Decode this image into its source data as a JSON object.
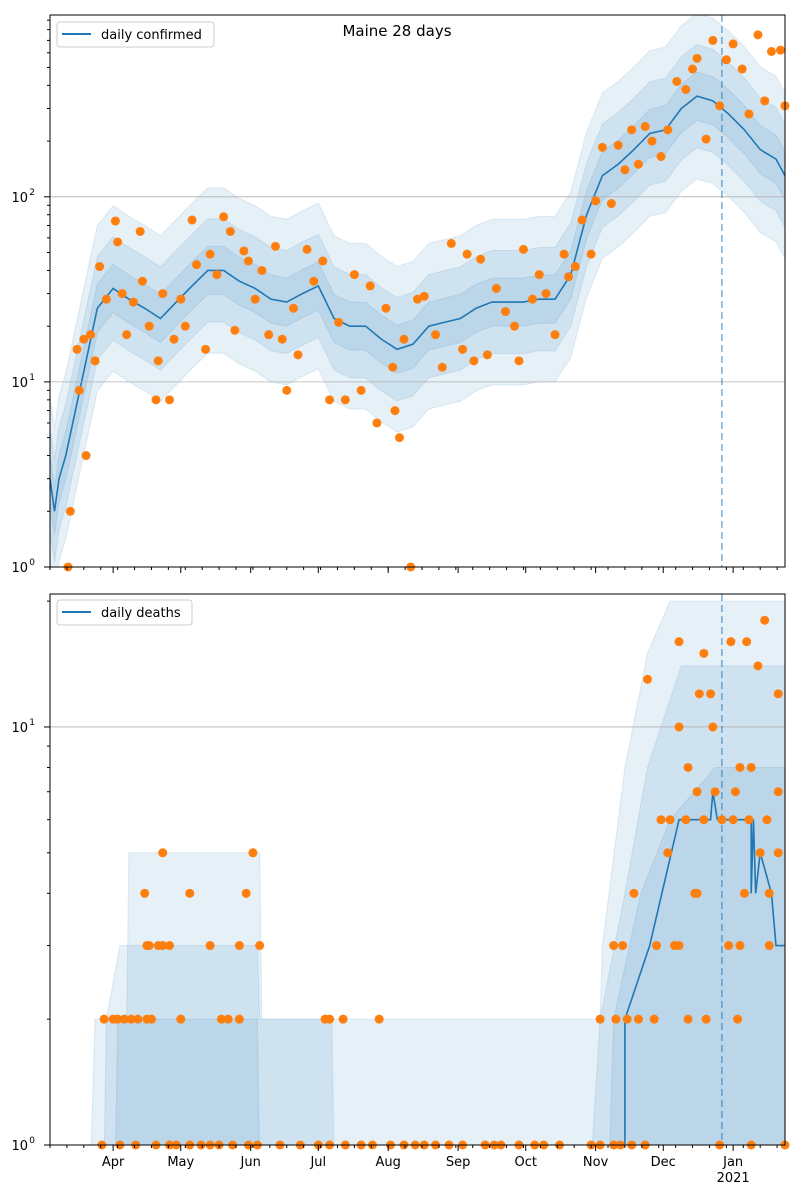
{
  "chart_data": [
    {
      "type": "line",
      "title": "Maine 28 days",
      "legend": "daily confirmed",
      "legend_placement": "top-left",
      "yscale": "log",
      "ylim": [
        1,
        960
      ],
      "yticks": [
        {
          "exp": "0"
        },
        {
          "exp": "1"
        },
        {
          "exp": "2"
        }
      ],
      "grid": "y-major",
      "x_start_date": "2020-03-04",
      "x_range_days": [
        0,
        326
      ],
      "forecast_marker_day": 298,
      "median": [
        [
          0,
          3
        ],
        [
          2,
          2
        ],
        [
          4,
          3
        ],
        [
          7,
          4
        ],
        [
          14,
          10
        ],
        [
          21,
          25
        ],
        [
          28,
          32
        ],
        [
          35,
          28
        ],
        [
          42,
          25
        ],
        [
          49,
          22
        ],
        [
          56,
          27
        ],
        [
          63,
          33
        ],
        [
          70,
          40
        ],
        [
          77,
          40
        ],
        [
          84,
          35
        ],
        [
          91,
          32
        ],
        [
          98,
          28
        ],
        [
          105,
          27
        ],
        [
          112,
          30
        ],
        [
          119,
          33
        ],
        [
          126,
          22
        ],
        [
          133,
          20
        ],
        [
          140,
          20
        ],
        [
          147,
          17
        ],
        [
          154,
          15
        ],
        [
          161,
          16
        ],
        [
          168,
          20
        ],
        [
          175,
          21
        ],
        [
          182,
          22
        ],
        [
          189,
          25
        ],
        [
          196,
          27
        ],
        [
          203,
          27
        ],
        [
          210,
          27
        ],
        [
          217,
          28
        ],
        [
          224,
          28
        ],
        [
          231,
          38
        ],
        [
          238,
          80
        ],
        [
          245,
          130
        ],
        [
          252,
          150
        ],
        [
          259,
          180
        ],
        [
          266,
          220
        ],
        [
          273,
          230
        ],
        [
          280,
          300
        ],
        [
          287,
          350
        ],
        [
          294,
          330
        ],
        [
          301,
          280
        ],
        [
          308,
          230
        ],
        [
          315,
          180
        ],
        [
          322,
          160
        ],
        [
          326,
          130
        ]
      ],
      "band_factors": [
        1.35,
        1.9,
        2.8
      ],
      "observed": [
        [
          8,
          1
        ],
        [
          9,
          2
        ],
        [
          12,
          15
        ],
        [
          13,
          9
        ],
        [
          15,
          17
        ],
        [
          16,
          4
        ],
        [
          18,
          18
        ],
        [
          20,
          13
        ],
        [
          22,
          42
        ],
        [
          25,
          28
        ],
        [
          29,
          74
        ],
        [
          30,
          57
        ],
        [
          32,
          30
        ],
        [
          34,
          18
        ],
        [
          37,
          27
        ],
        [
          40,
          65
        ],
        [
          41,
          35
        ],
        [
          44,
          20
        ],
        [
          47,
          8
        ],
        [
          48,
          13
        ],
        [
          50,
          30
        ],
        [
          53,
          8
        ],
        [
          55,
          17
        ],
        [
          58,
          28
        ],
        [
          60,
          20
        ],
        [
          63,
          75
        ],
        [
          65,
          43
        ],
        [
          69,
          15
        ],
        [
          71,
          49
        ],
        [
          74,
          38
        ],
        [
          77,
          78
        ],
        [
          80,
          65
        ],
        [
          82,
          19
        ],
        [
          86,
          51
        ],
        [
          88,
          45
        ],
        [
          91,
          28
        ],
        [
          94,
          40
        ],
        [
          97,
          18
        ],
        [
          100,
          54
        ],
        [
          103,
          17
        ],
        [
          105,
          9
        ],
        [
          108,
          25
        ],
        [
          110,
          14
        ],
        [
          114,
          52
        ],
        [
          117,
          35
        ],
        [
          121,
          45
        ],
        [
          124,
          8
        ],
        [
          128,
          21
        ],
        [
          131,
          8
        ],
        [
          135,
          38
        ],
        [
          138,
          9
        ],
        [
          142,
          33
        ],
        [
          145,
          6
        ],
        [
          149,
          25
        ],
        [
          152,
          12
        ],
        [
          153,
          7
        ],
        [
          155,
          5
        ],
        [
          157,
          17
        ],
        [
          160,
          1
        ],
        [
          163,
          28
        ],
        [
          166,
          29
        ],
        [
          171,
          18
        ],
        [
          174,
          12
        ],
        [
          178,
          56
        ],
        [
          183,
          15
        ],
        [
          185,
          49
        ],
        [
          188,
          13
        ],
        [
          191,
          46
        ],
        [
          194,
          14
        ],
        [
          198,
          32
        ],
        [
          202,
          24
        ],
        [
          206,
          20
        ],
        [
          208,
          13
        ],
        [
          210,
          52
        ],
        [
          214,
          28
        ],
        [
          217,
          38
        ],
        [
          220,
          30
        ],
        [
          224,
          18
        ],
        [
          228,
          49
        ],
        [
          230,
          37
        ],
        [
          233,
          42
        ],
        [
          236,
          75
        ],
        [
          240,
          49
        ],
        [
          242,
          95
        ],
        [
          245,
          185
        ],
        [
          249,
          92
        ],
        [
          252,
          190
        ],
        [
          255,
          140
        ],
        [
          258,
          230
        ],
        [
          261,
          150
        ],
        [
          264,
          240
        ],
        [
          267,
          200
        ],
        [
          271,
          165
        ],
        [
          274,
          230
        ],
        [
          278,
          420
        ],
        [
          282,
          380
        ],
        [
          285,
          490
        ],
        [
          287,
          560
        ],
        [
          291,
          205
        ],
        [
          294,
          700
        ],
        [
          297,
          310
        ],
        [
          300,
          550
        ],
        [
          303,
          670
        ],
        [
          307,
          490
        ],
        [
          310,
          280
        ],
        [
          314,
          750
        ],
        [
          317,
          330
        ],
        [
          320,
          610
        ],
        [
          324,
          620
        ],
        [
          326,
          310
        ]
      ]
    },
    {
      "type": "line",
      "legend": "daily deaths",
      "legend_placement": "top-left",
      "yscale": "log",
      "ylim": [
        1,
        20.8
      ],
      "yticks": [
        {
          "exp": "0"
        },
        {
          "exp": "1"
        }
      ],
      "grid": "y-major",
      "xticks": [
        "Apr",
        "May",
        "Jun",
        "Jul",
        "Aug",
        "Sep",
        "Oct",
        "Nov",
        "Dec",
        "Jan"
      ],
      "xtick_days": [
        28,
        58,
        89,
        119,
        150,
        181,
        211,
        242,
        272,
        303
      ],
      "xtick_year": "2021",
      "forecast_marker_day": 298,
      "median_steps": [
        [
          0,
          0
        ],
        [
          255,
          0
        ],
        [
          255,
          2
        ],
        [
          266,
          3
        ],
        [
          279,
          6
        ],
        [
          293,
          6
        ],
        [
          294,
          7
        ],
        [
          296,
          6
        ],
        [
          311,
          6
        ],
        [
          311,
          4
        ],
        [
          312,
          6
        ],
        [
          313,
          4
        ],
        [
          315,
          5
        ],
        [
          320,
          4
        ],
        [
          322,
          3
        ],
        [
          326,
          3
        ]
      ],
      "bands_upper": [
        [
          [
            18,
            0.9
          ],
          [
            20,
            2
          ],
          [
            34,
            2
          ],
          [
            35,
            5
          ],
          [
            93,
            5
          ],
          [
            94,
            2
          ],
          [
            244,
            2
          ],
          [
            245,
            3
          ],
          [
            255,
            8
          ],
          [
            265,
            15
          ],
          [
            275,
            20
          ],
          [
            326,
            20
          ]
        ],
        [
          [
            24,
            0.9
          ],
          [
            25,
            2
          ],
          [
            31,
            3
          ],
          [
            92,
            3
          ],
          [
            93,
            2
          ],
          [
            125,
            2
          ],
          [
            126,
            0.9
          ],
          [
            240,
            0.9
          ],
          [
            244,
            2
          ],
          [
            255,
            4
          ],
          [
            265,
            8
          ],
          [
            280,
            14
          ],
          [
            326,
            14
          ]
        ],
        [
          [
            29,
            0.9
          ],
          [
            30,
            2
          ],
          [
            92,
            2
          ],
          [
            93,
            0.9
          ],
          [
            248,
            0.9
          ],
          [
            250,
            2
          ],
          [
            262,
            4
          ],
          [
            275,
            6
          ],
          [
            295,
            8
          ],
          [
            326,
            8
          ]
        ]
      ],
      "observed": [
        [
          23,
          1
        ],
        [
          31,
          1
        ],
        [
          38,
          1
        ],
        [
          47,
          1
        ],
        [
          53,
          1
        ],
        [
          56,
          1
        ],
        [
          62,
          1
        ],
        [
          67,
          1
        ],
        [
          71,
          1
        ],
        [
          75,
          1
        ],
        [
          81,
          1
        ],
        [
          88,
          1
        ],
        [
          92,
          1
        ],
        [
          102,
          1
        ],
        [
          111,
          1
        ],
        [
          119,
          1
        ],
        [
          124,
          1
        ],
        [
          131,
          1
        ],
        [
          138,
          1
        ],
        [
          143,
          1
        ],
        [
          151,
          1
        ],
        [
          157,
          1
        ],
        [
          162,
          1
        ],
        [
          166,
          1
        ],
        [
          171,
          1
        ],
        [
          177,
          1
        ],
        [
          183,
          1
        ],
        [
          193,
          1
        ],
        [
          197,
          1
        ],
        [
          200,
          1
        ],
        [
          208,
          1
        ],
        [
          215,
          1
        ],
        [
          219,
          1
        ],
        [
          226,
          1
        ],
        [
          240,
          1
        ],
        [
          244,
          1
        ],
        [
          250,
          1
        ],
        [
          253,
          1
        ],
        [
          258,
          1
        ],
        [
          264,
          1
        ],
        [
          297,
          1
        ],
        [
          311,
          1
        ],
        [
          326,
          1
        ],
        [
          24,
          2
        ],
        [
          28,
          2
        ],
        [
          30,
          2
        ],
        [
          33,
          2
        ],
        [
          36,
          2
        ],
        [
          39,
          2
        ],
        [
          43,
          2
        ],
        [
          45,
          2
        ],
        [
          58,
          2
        ],
        [
          76,
          2
        ],
        [
          79,
          2
        ],
        [
          84,
          2
        ],
        [
          122,
          2
        ],
        [
          124,
          2
        ],
        [
          130,
          2
        ],
        [
          146,
          2
        ],
        [
          244,
          2
        ],
        [
          251,
          2
        ],
        [
          256,
          2
        ],
        [
          261,
          2
        ],
        [
          268,
          2
        ],
        [
          283,
          2
        ],
        [
          291,
          2
        ],
        [
          305,
          2
        ],
        [
          43,
          3
        ],
        [
          44,
          3
        ],
        [
          48,
          3
        ],
        [
          50,
          3
        ],
        [
          53,
          3
        ],
        [
          71,
          3
        ],
        [
          84,
          3
        ],
        [
          93,
          3
        ],
        [
          250,
          3
        ],
        [
          254,
          3
        ],
        [
          269,
          3
        ],
        [
          277,
          3
        ],
        [
          279,
          3
        ],
        [
          301,
          3
        ],
        [
          306,
          3
        ],
        [
          319,
          3
        ],
        [
          42,
          4
        ],
        [
          62,
          4
        ],
        [
          87,
          4
        ],
        [
          259,
          4
        ],
        [
          286,
          4
        ],
        [
          287,
          4
        ],
        [
          308,
          4
        ],
        [
          319,
          4
        ],
        [
          50,
          5
        ],
        [
          90,
          5
        ],
        [
          274,
          5
        ],
        [
          315,
          5
        ],
        [
          323,
          5
        ],
        [
          271,
          6
        ],
        [
          275,
          6
        ],
        [
          282,
          6
        ],
        [
          290,
          6
        ],
        [
          298,
          6
        ],
        [
          303,
          6
        ],
        [
          310,
          6
        ],
        [
          318,
          6
        ],
        [
          287,
          7
        ],
        [
          295,
          7
        ],
        [
          304,
          7
        ],
        [
          323,
          7
        ],
        [
          283,
          8
        ],
        [
          311,
          8
        ],
        [
          306,
          8
        ],
        [
          279,
          10
        ],
        [
          294,
          10
        ],
        [
          288,
          12
        ],
        [
          293,
          12
        ],
        [
          323,
          12
        ],
        [
          265,
          13
        ],
        [
          314,
          14
        ],
        [
          290,
          15
        ],
        [
          279,
          16
        ],
        [
          302,
          16
        ],
        [
          309,
          16
        ],
        [
          317,
          18
        ]
      ]
    }
  ],
  "colors": {
    "line": "#1f77b4",
    "points": "#ff7f0e",
    "band": "#1f77b4"
  }
}
